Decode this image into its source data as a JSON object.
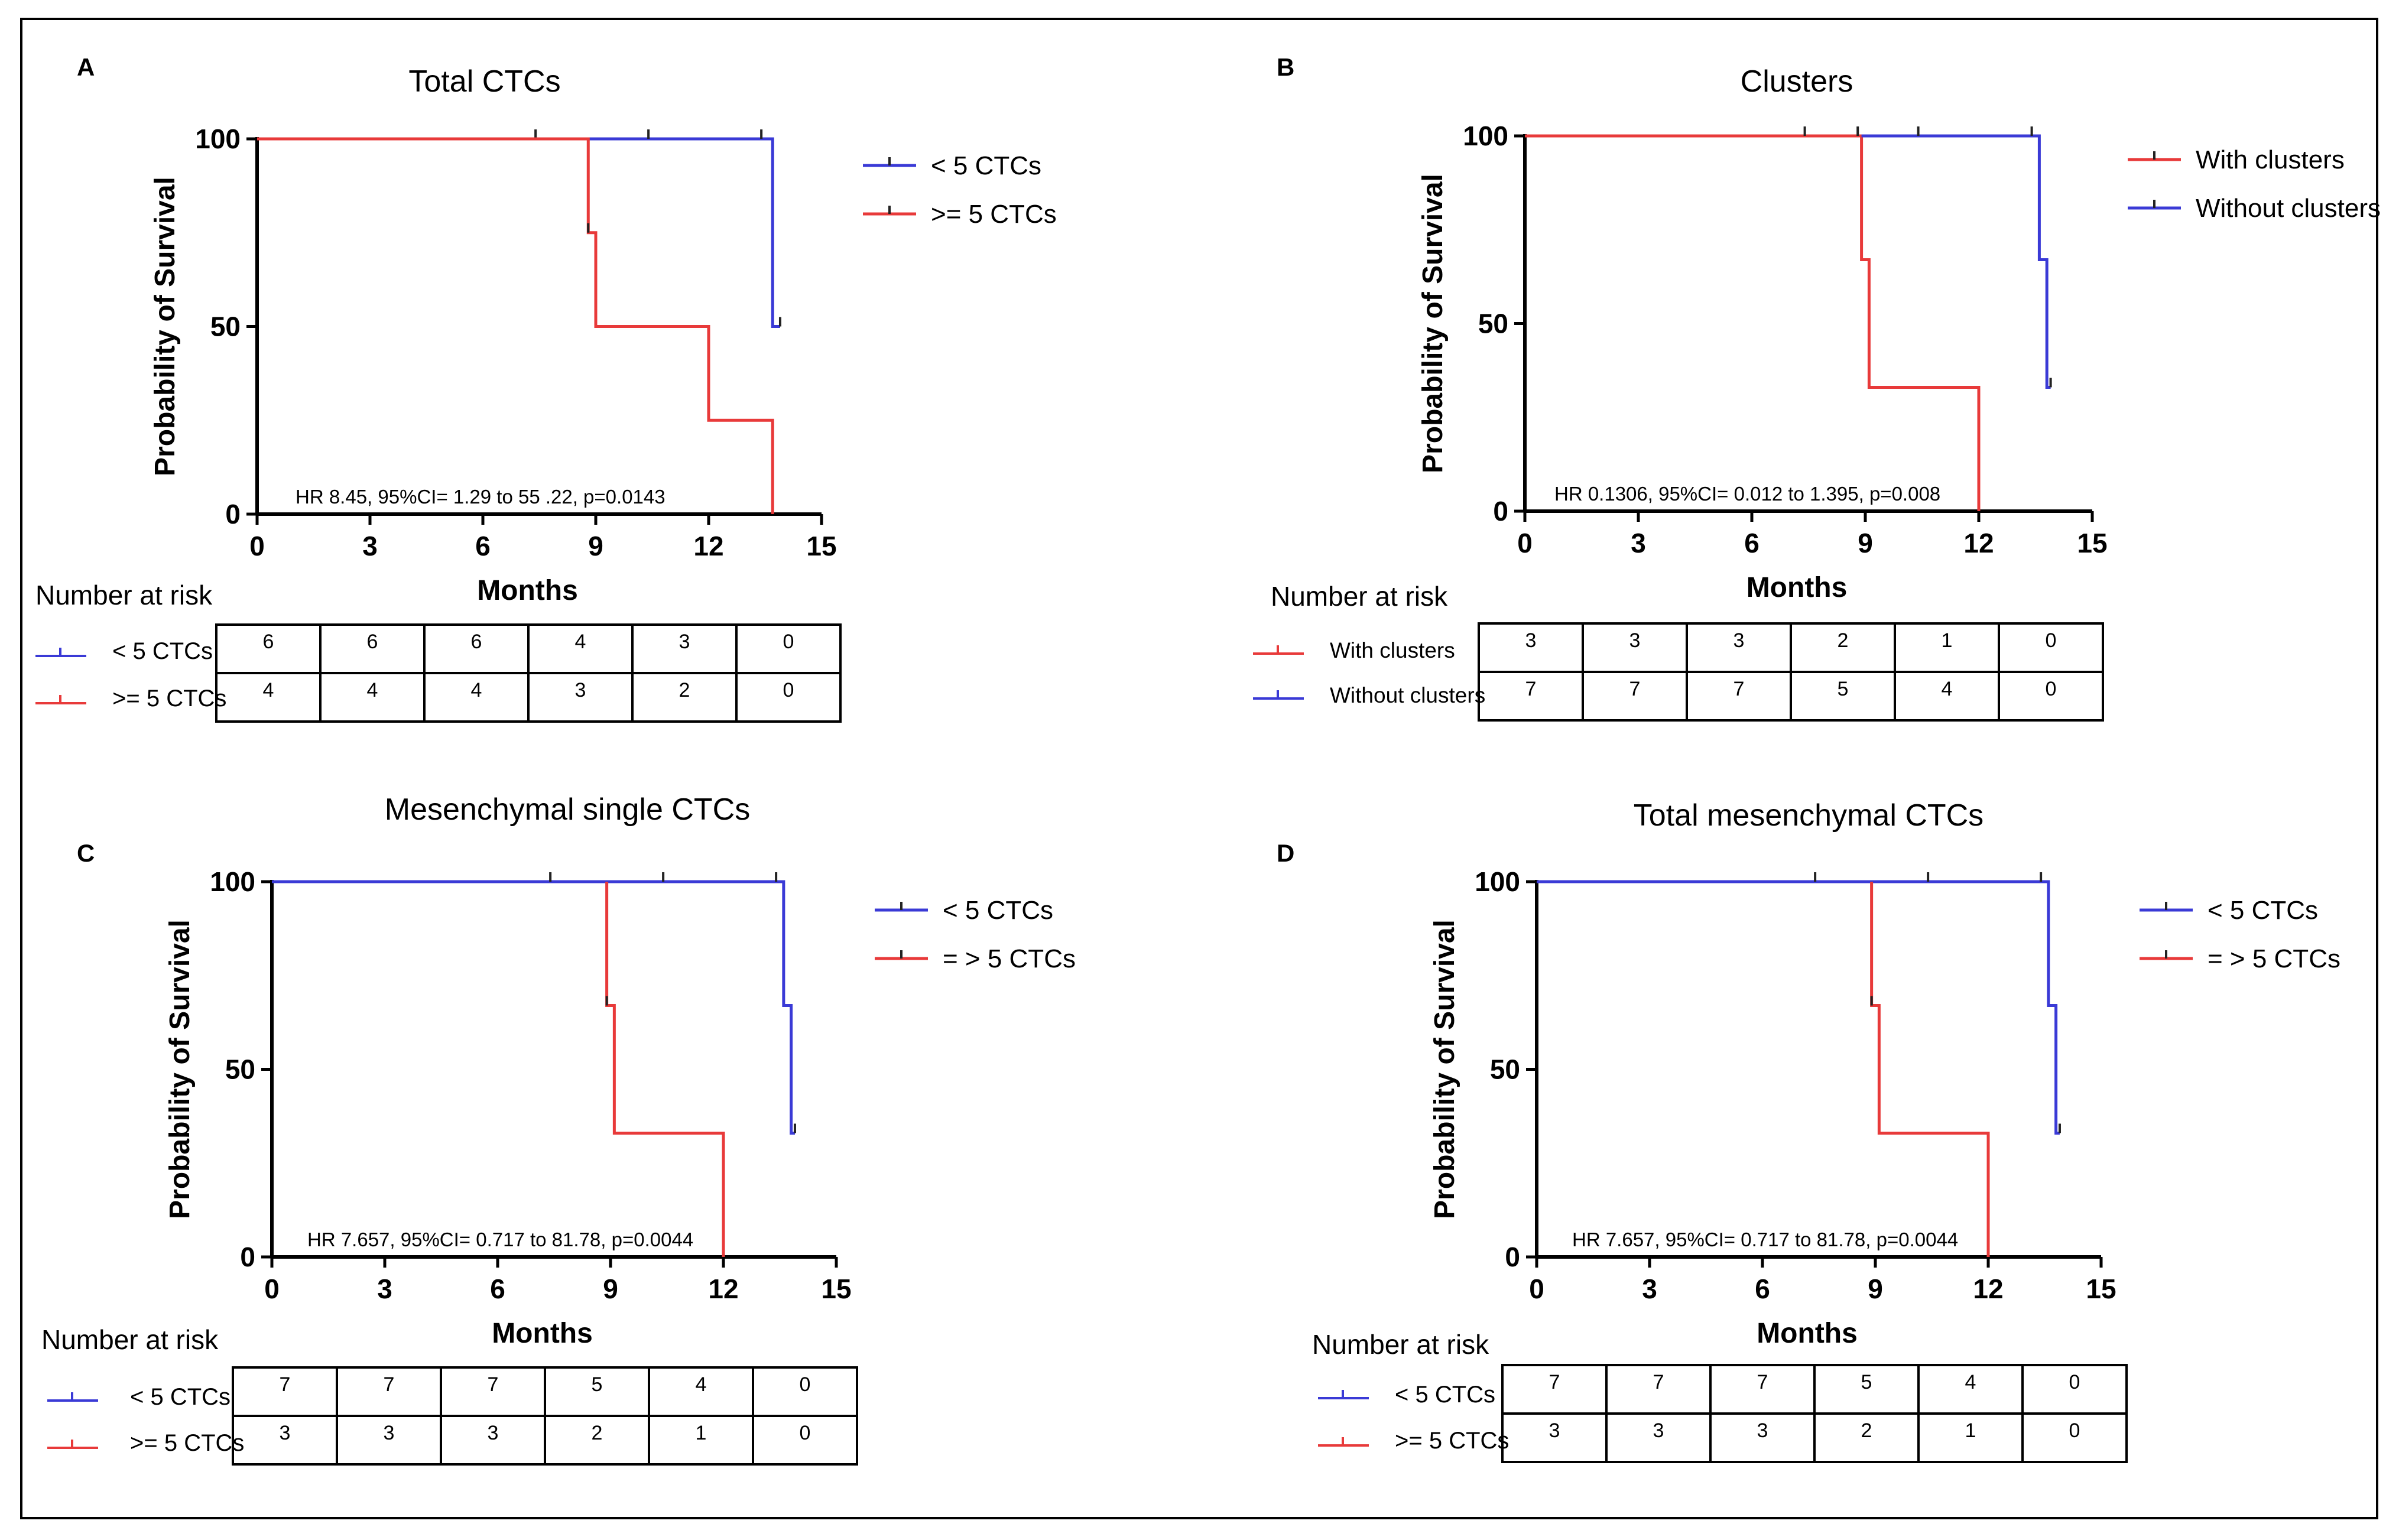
{
  "chart_data": [
    {
      "type": "line",
      "panel": "A",
      "title": "Total CTCs",
      "xlabel": "Months",
      "ylabel": "Probability of Survival",
      "xlim": [
        0,
        15
      ],
      "ylim": [
        0,
        100
      ],
      "xticks": [
        "0",
        "3",
        "6",
        "9",
        "12",
        "15"
      ],
      "yticks": [
        "0",
        "50",
        "100"
      ],
      "annotation": "HR 8.45, 95%CI= 1.29 to 55 .22, p=0.0143",
      "colors": {
        "blue": "#3a3ad6",
        "red": "#e83a3a"
      },
      "series": [
        {
          "name": "< 5 CTCs",
          "color": "#3a3ad6",
          "x": [
            0,
            13.7,
            13.7,
            13.9
          ],
          "y": [
            100,
            100,
            50,
            50
          ],
          "censored": [
            7.4,
            10.4,
            13.4,
            13.9
          ]
        },
        {
          "name": ">= 5 CTCs",
          "color": "#e83a3a",
          "x": [
            0,
            8.8,
            8.8,
            9.0,
            9.0,
            12.0,
            12.0,
            13.7,
            13.7
          ],
          "y": [
            100,
            100,
            75,
            75,
            50,
            50,
            25,
            25,
            0
          ],
          "censored": [
            8.8
          ]
        }
      ],
      "risk_table": {
        "label": "Number at risk",
        "rows": [
          {
            "name": "< 5 CTCs",
            "color": "#3a3ad6",
            "values": [
              "6",
              "6",
              "6",
              "4",
              "3",
              "0"
            ]
          },
          {
            "name": ">= 5 CTCs",
            "color": "#e83a3a",
            "values": [
              "4",
              "4",
              "4",
              "3",
              "2",
              "0"
            ]
          }
        ]
      }
    },
    {
      "type": "line",
      "panel": "B",
      "title": "Clusters",
      "xlabel": "Months",
      "ylabel": "Probability of Survival",
      "xlim": [
        0,
        15
      ],
      "ylim": [
        0,
        100
      ],
      "xticks": [
        "0",
        "3",
        "6",
        "9",
        "12",
        "15"
      ],
      "yticks": [
        "0",
        "50",
        "100"
      ],
      "annotation": "HR 0.1306, 95%CI= 0.012 to 1.395, p=0.008",
      "colors": {
        "blue": "#3a3ad6",
        "red": "#e83a3a"
      },
      "series": [
        {
          "name": "With clusters",
          "color": "#e83a3a",
          "x": [
            0,
            8.9,
            8.9,
            9.1,
            9.1,
            12.0,
            12.0
          ],
          "y": [
            100,
            100,
            67,
            67,
            33,
            33,
            0
          ],
          "censored": [
            7.4,
            8.8
          ]
        },
        {
          "name": "Without clusters",
          "color": "#3a3ad6",
          "x": [
            8.9,
            13.6,
            13.6,
            13.8,
            13.8,
            13.9
          ],
          "y": [
            100,
            100,
            67,
            67,
            33,
            33
          ],
          "censored": [
            10.4,
            13.4,
            13.9
          ]
        }
      ],
      "risk_table": {
        "label": "Number at risk",
        "rows": [
          {
            "name": "With clusters",
            "color": "#e83a3a",
            "values": [
              "3",
              "3",
              "3",
              "2",
              "1",
              "0"
            ]
          },
          {
            "name": "Without clusters",
            "color": "#3a3ad6",
            "values": [
              "7",
              "7",
              "7",
              "5",
              "4",
              "0"
            ]
          }
        ]
      }
    },
    {
      "type": "line",
      "panel": "C",
      "title": "Mesenchymal single CTCs",
      "xlabel": "Months",
      "ylabel": "Probability of Survival",
      "xlim": [
        0,
        15
      ],
      "ylim": [
        0,
        100
      ],
      "xticks": [
        "0",
        "3",
        "6",
        "9",
        "12",
        "15"
      ],
      "yticks": [
        "0",
        "50",
        "100"
      ],
      "annotation": "HR 7.657, 95%CI= 0.717 to 81.78, p=0.0044",
      "colors": {
        "blue": "#3a3ad6",
        "red": "#e83a3a"
      },
      "series": [
        {
          "name": "< 5 CTCs",
          "color": "#3a3ad6",
          "x": [
            0,
            13.6,
            13.6,
            13.8,
            13.8,
            13.9
          ],
          "y": [
            100,
            100,
            67,
            67,
            33,
            33
          ],
          "censored": [
            7.4,
            10.4,
            13.4,
            13.9
          ]
        },
        {
          "name": "= > 5 CTCs",
          "color": "#e83a3a",
          "x": [
            8.9,
            8.9,
            9.1,
            9.1,
            12.0,
            12.0
          ],
          "y": [
            100,
            67,
            67,
            33,
            33,
            0
          ],
          "censored": [
            8.9
          ]
        }
      ],
      "risk_table": {
        "label": "Number at risk",
        "rows": [
          {
            "name": "< 5 CTCs",
            "color": "#3a3ad6",
            "values": [
              "7",
              "7",
              "7",
              "5",
              "4",
              "0"
            ]
          },
          {
            "name": ">= 5 CTCs",
            "color": "#e83a3a",
            "values": [
              "3",
              "3",
              "3",
              "2",
              "1",
              "0"
            ]
          }
        ]
      }
    },
    {
      "type": "line",
      "panel": "D",
      "title": "Total mesenchymal CTCs",
      "xlabel": "Months",
      "ylabel": "Probability of Survival",
      "xlim": [
        0,
        15
      ],
      "ylim": [
        0,
        100
      ],
      "xticks": [
        "0",
        "3",
        "6",
        "9",
        "12",
        "15"
      ],
      "yticks": [
        "0",
        "50",
        "100"
      ],
      "annotation": "HR 7.657, 95%CI= 0.717 to 81.78, p=0.0044",
      "colors": {
        "blue": "#3a3ad6",
        "red": "#e83a3a"
      },
      "series": [
        {
          "name": "< 5 CTCs",
          "color": "#3a3ad6",
          "x": [
            0,
            13.6,
            13.6,
            13.8,
            13.8,
            13.9
          ],
          "y": [
            100,
            100,
            67,
            67,
            33,
            33
          ],
          "censored": [
            7.4,
            10.4,
            13.4,
            13.9
          ]
        },
        {
          "name": "= > 5 CTCs",
          "color": "#e83a3a",
          "x": [
            8.9,
            8.9,
            9.1,
            9.1,
            12.0,
            12.0
          ],
          "y": [
            100,
            67,
            67,
            33,
            33,
            0
          ],
          "censored": [
            8.9
          ]
        }
      ],
      "risk_table": {
        "label": "Number at risk",
        "rows": [
          {
            "name": "< 5 CTCs",
            "color": "#3a3ad6",
            "values": [
              "7",
              "7",
              "7",
              "5",
              "4",
              "0"
            ]
          },
          {
            "name": ">= 5 CTCs",
            "color": "#e83a3a",
            "values": [
              "3",
              "3",
              "3",
              "2",
              "1",
              "0"
            ]
          }
        ]
      }
    }
  ]
}
